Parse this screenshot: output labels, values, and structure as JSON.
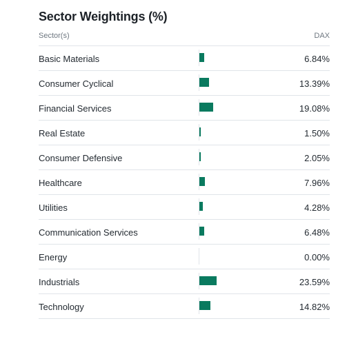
{
  "title": "Sector Weightings (%)",
  "header": {
    "left": "Sector(s)",
    "right": "DAX"
  },
  "colors": {
    "bar": "#0a7a5f"
  },
  "rows": [
    {
      "label": "Basic Materials",
      "value": "6.84%",
      "pct": 6.84
    },
    {
      "label": "Consumer Cyclical",
      "value": "13.39%",
      "pct": 13.39
    },
    {
      "label": "Financial Services",
      "value": "19.08%",
      "pct": 19.08
    },
    {
      "label": "Real Estate",
      "value": "1.50%",
      "pct": 1.5
    },
    {
      "label": "Consumer Defensive",
      "value": "2.05%",
      "pct": 2.05
    },
    {
      "label": "Healthcare",
      "value": "7.96%",
      "pct": 7.96
    },
    {
      "label": "Utilities",
      "value": "4.28%",
      "pct": 4.28
    },
    {
      "label": "Communication Services",
      "value": "6.48%",
      "pct": 6.48
    },
    {
      "label": "Energy",
      "value": "0.00%",
      "pct": 0.0
    },
    {
      "label": "Industrials",
      "value": "23.59%",
      "pct": 23.59
    },
    {
      "label": "Technology",
      "value": "14.82%",
      "pct": 14.82
    }
  ]
}
